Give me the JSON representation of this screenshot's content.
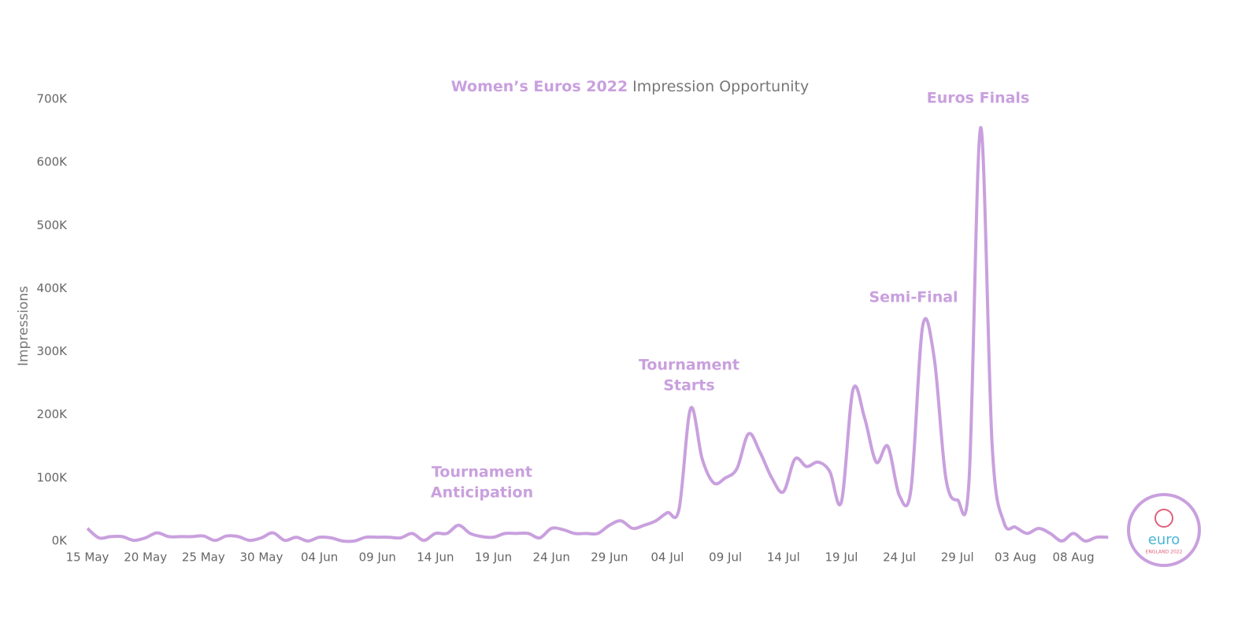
{
  "chart_data": {
    "type": "line",
    "title_highlight": "Women’s Euros 2022",
    "title": "Impression Opportunity",
    "y_label": "Impressions",
    "color": "#c9a0de",
    "categories": [
      "15 May",
      null,
      null,
      null,
      null,
      "20 May",
      null,
      null,
      null,
      null,
      "25 May",
      null,
      null,
      null,
      null,
      "30 May",
      null,
      null,
      null,
      null,
      "04 Jun",
      null,
      null,
      null,
      null,
      "09 Jun",
      null,
      null,
      null,
      null,
      "14 Jun",
      null,
      null,
      null,
      null,
      "19 Jun",
      null,
      null,
      null,
      null,
      "24 Jun",
      null,
      null,
      null,
      null,
      "29 Jun",
      null,
      null,
      null,
      null,
      "04 Jul",
      null,
      null,
      null,
      null,
      "09 Jul",
      null,
      null,
      null,
      null,
      "14 Jul",
      null,
      null,
      null,
      null,
      "19 Jul",
      null,
      null,
      null,
      null,
      "24 Jul",
      null,
      null,
      null,
      null,
      "29 Jul",
      null,
      null,
      null,
      null,
      "03 Aug",
      null,
      null,
      null,
      null,
      "08 Aug",
      null,
      null,
      null
    ],
    "series": [
      {
        "name": "Impressions",
        "values": [
          20,
          5,
          7,
          7,
          1,
          5,
          13,
          7,
          7,
          7,
          8,
          1,
          8,
          7,
          1,
          5,
          13,
          1,
          6,
          0,
          6,
          5,
          0,
          0,
          6,
          6,
          6,
          5,
          12,
          1,
          12,
          12,
          25,
          12,
          7,
          6,
          12,
          12,
          12,
          5,
          20,
          18,
          12,
          12,
          12,
          25,
          32,
          20,
          25,
          32,
          45,
          50,
          210,
          130,
          92,
          100,
          115,
          170,
          140,
          100,
          78,
          130,
          118,
          125,
          110,
          62,
          240,
          195,
          125,
          150,
          72,
          82,
          340,
          290,
          100,
          65,
          95,
          655,
          150,
          30,
          22,
          12,
          20,
          12,
          0,
          12,
          0,
          6,
          6
        ]
      }
    ],
    "ylim": [
      0,
      700
    ],
    "yticks": [
      {
        "value": 0,
        "label": "0K"
      },
      {
        "value": 100,
        "label": "100K"
      },
      {
        "value": 200,
        "label": "200K"
      },
      {
        "value": 300,
        "label": "300K"
      },
      {
        "value": 400,
        "label": "400K"
      },
      {
        "value": 500,
        "label": "500K"
      },
      {
        "value": 600,
        "label": "600K"
      },
      {
        "value": 700,
        "label": "700K"
      }
    ],
    "annotations": [
      {
        "lines": [
          "Tournament",
          "Anticipation"
        ]
      },
      {
        "lines": [
          "Tournament",
          "Starts"
        ]
      },
      {
        "lines": [
          "Semi-Final"
        ]
      },
      {
        "lines": [
          "Euros Finals"
        ]
      }
    ],
    "logo": {
      "text": "euro",
      "subtext": "ENGLAND 2022"
    }
  }
}
